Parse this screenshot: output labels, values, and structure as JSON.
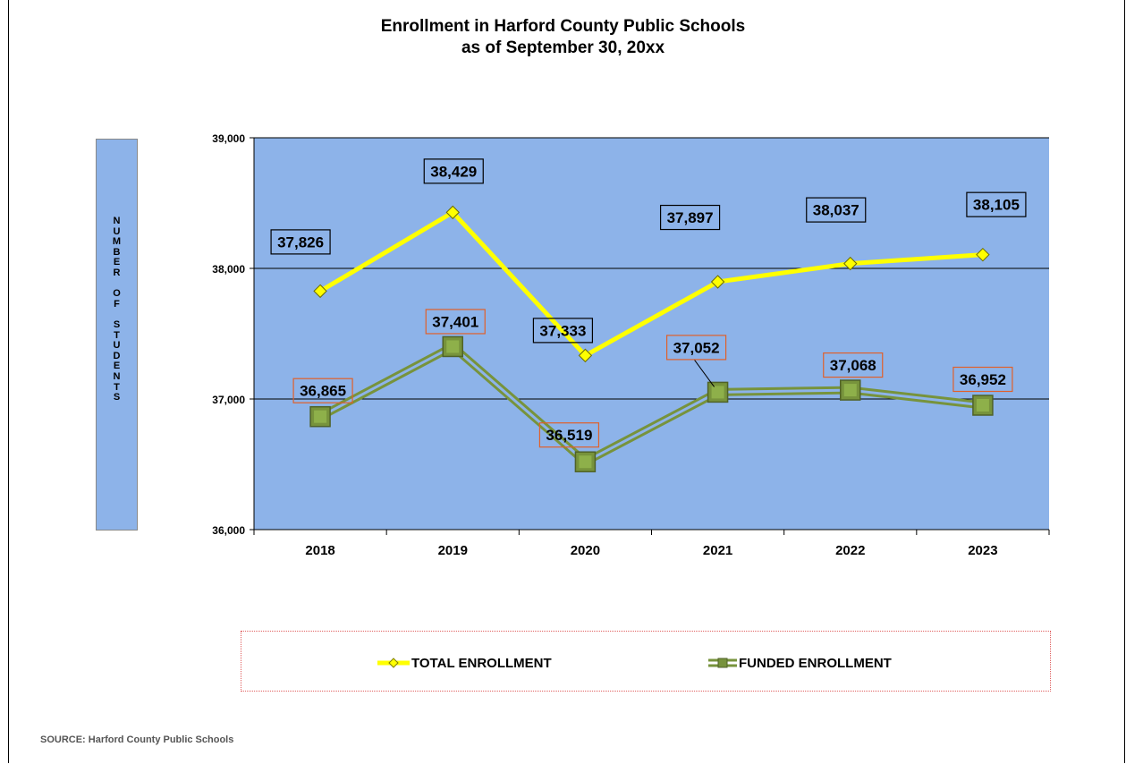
{
  "chart_data": {
    "type": "line",
    "title": "Enrollment in Harford County Public Schools",
    "subtitle": "as of September 30, 20xx",
    "ylabel": "NUMBER OF STUDENTS",
    "xlabel": "",
    "categories": [
      "2018",
      "2019",
      "2020",
      "2021",
      "2022",
      "2023"
    ],
    "ylim": [
      36000,
      39000
    ],
    "yticks": [
      36000,
      37000,
      38000,
      39000
    ],
    "ytick_labels": [
      "36,000",
      "37,000",
      "38,000",
      "39,000"
    ],
    "grid": true,
    "legend_position": "bottom",
    "series": [
      {
        "name": "TOTAL ENROLLMENT",
        "values": [
          37826,
          38429,
          37333,
          37897,
          38037,
          38105
        ],
        "labels": [
          "37,826",
          "38,429",
          "37,333",
          "37,897",
          "38,037",
          "38,105"
        ],
        "color": "#ffff00",
        "marker": "diamond",
        "label_border": "#000000"
      },
      {
        "name": "FUNDED ENROLLMENT",
        "values": [
          36865,
          37401,
          36519,
          37052,
          37068,
          36952
        ],
        "labels": [
          "36,865",
          "37,401",
          "36,519",
          "37,052",
          "37,068",
          "36,952"
        ],
        "color": "#77933c",
        "marker": "square",
        "label_border": "#e0602a"
      }
    ],
    "plot_background": "#8db3e9"
  },
  "source": "SOURCE:  Harford County Public Schools"
}
